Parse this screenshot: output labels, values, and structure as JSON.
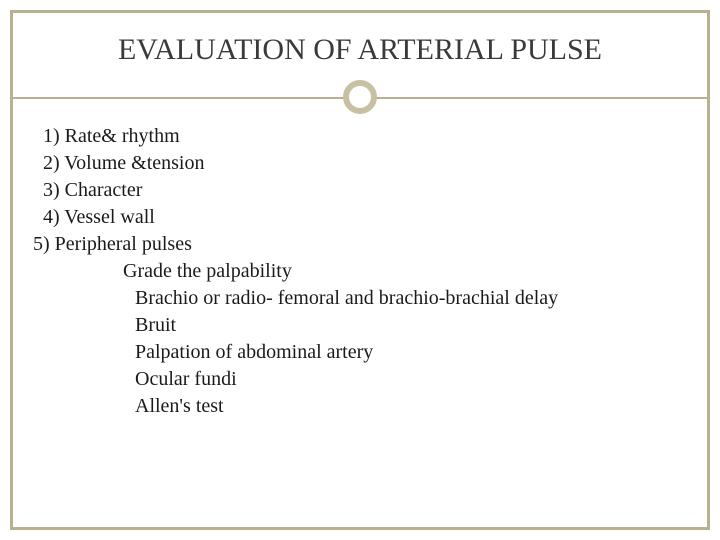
{
  "title": "EVALUATION OF ARTERIAL PULSE",
  "colors": {
    "border": "#b8b090",
    "circle_border": "#c7c0a2",
    "title_text": "#3a3a3a",
    "body_text": "#1a1a1a",
    "background": "#ffffff"
  },
  "typography": {
    "title_fontsize": 30,
    "body_fontsize": 20,
    "font_family": "Georgia, Times New Roman, serif"
  },
  "lines": [
    {
      "text": "1) Rate& rhythm",
      "indent": "indent-0"
    },
    {
      "text": "2) Volume &tension",
      "indent": "indent-0"
    },
    {
      "text": "3) Character",
      "indent": "indent-0"
    },
    {
      "text": "4) Vessel wall",
      "indent": "indent-0"
    },
    {
      "text": "5) Peripheral pulses",
      "indent": "indent-neg"
    },
    {
      "text": "Grade the palpability",
      "indent": "indent-1"
    },
    {
      "text": "Brachio or radio- femoral and brachio-brachial delay",
      "indent": "indent-2"
    },
    {
      "text": "Bruit",
      "indent": "indent-2"
    },
    {
      "text": "Palpation of abdominal artery",
      "indent": "indent-2"
    },
    {
      "text": "Ocular fundi",
      "indent": "indent-2"
    },
    {
      "text": "Allen's test",
      "indent": "indent-2"
    }
  ]
}
